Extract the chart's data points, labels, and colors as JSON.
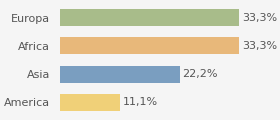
{
  "categories": [
    "Europa",
    "Africa",
    "Asia",
    "America"
  ],
  "values": [
    33.3,
    33.3,
    22.2,
    11.1
  ],
  "labels": [
    "33,3%",
    "33,3%",
    "22,2%",
    "11,1%"
  ],
  "bar_colors": [
    "#a8bc8a",
    "#e8b87a",
    "#7a9ec0",
    "#f0d078"
  ],
  "background_color": "#f5f5f5",
  "xlim": [
    0,
    38
  ],
  "label_fontsize": 8,
  "category_fontsize": 8
}
